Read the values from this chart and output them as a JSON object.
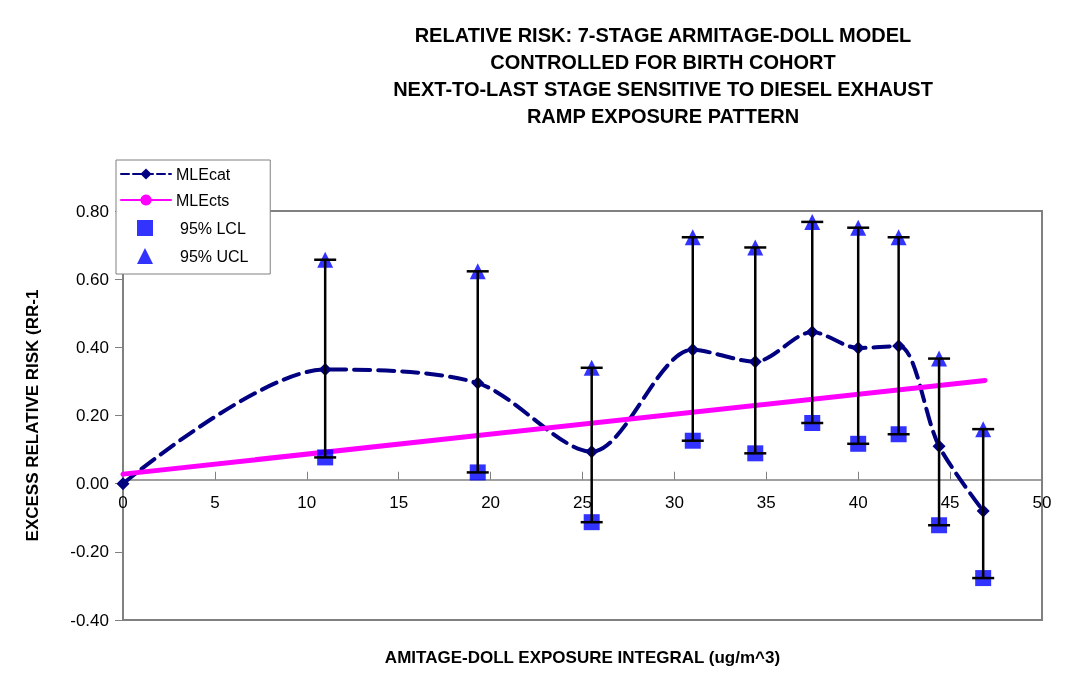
{
  "chart_data": {
    "type": "line",
    "title": "RELATIVE RISK: 7-STAGE ARMITAGE-DOLL MODEL\nCONTROLLED FOR BIRTH COHORT\nNEXT-TO-LAST STAGE SENSITIVE TO DIESEL EXHAUST\nRAMP EXPOSURE PATTERN",
    "xlabel": "AMITAGE-DOLL EXPOSURE INTEGRAL (ug/m^3)",
    "ylabel": "EXCESS RELATIVE RISK (RR-1",
    "series": [
      {
        "name": "MLEcat",
        "color": "#000080",
        "marker": "diamond",
        "line_style": "dashed",
        "x": [
          0,
          11.0,
          19.3,
          25.5,
          31.0,
          34.4,
          37.5,
          40.0,
          42.2,
          44.4,
          46.8
        ],
        "values": [
          0,
          0.335,
          0.295,
          0.094,
          0.393,
          0.358,
          0.445,
          0.398,
          0.404,
          0.11,
          -0.08
        ],
        "errors": [
          null,
          [
            0.077,
            0.657
          ],
          [
            0.033,
            0.623
          ],
          [
            -0.113,
            0.34
          ],
          [
            0.126,
            0.723
          ],
          [
            0.089,
            0.693
          ],
          [
            0.178,
            0.768
          ],
          [
            0.117,
            0.751
          ],
          [
            0.145,
            0.723
          ],
          [
            -0.122,
            0.367
          ],
          [
            -0.277,
            0.16
          ]
        ]
      },
      {
        "name": "MLEcts",
        "color": "#ff00ff",
        "marker": "none",
        "line_style": "solid",
        "x": [
          0,
          46.9
        ],
        "values": [
          0.028,
          0.303
        ]
      },
      {
        "name": "95% LCL",
        "type": "scatter",
        "color": "#0000ff",
        "marker": "square",
        "x": [
          11.0,
          19.3,
          25.5,
          31.0,
          34.4,
          37.5,
          40.0,
          42.2,
          44.4,
          46.8
        ],
        "values": [
          0.077,
          0.033,
          -0.113,
          0.126,
          0.089,
          0.178,
          0.117,
          0.145,
          -0.122,
          -0.277
        ]
      },
      {
        "name": "95% UCL",
        "type": "scatter",
        "color": "#0000ff",
        "marker": "triangle",
        "x": [
          11.0,
          19.3,
          25.5,
          31.0,
          34.4,
          37.5,
          40.0,
          42.2,
          44.4,
          46.8
        ],
        "values": [
          0.657,
          0.623,
          0.34,
          0.723,
          0.693,
          0.768,
          0.751,
          0.723,
          0.367,
          0.16
        ]
      }
    ],
    "xlim": [
      0,
      50
    ],
    "xticks": [
      0,
      5,
      10,
      15,
      20,
      25,
      30,
      35,
      40,
      45,
      50
    ],
    "ylim": [
      -0.4,
      0.8
    ],
    "yticks": [
      {
        "value": -0.4,
        "label": "-0.40"
      },
      {
        "value": -0.2,
        "label": "-0.20"
      },
      {
        "value": 0,
        "label": "0.00"
      },
      {
        "value": 0.2,
        "label": "0.20"
      },
      {
        "value": 0.4,
        "label": "0.40"
      },
      {
        "value": 0.6,
        "label": "0.60"
      },
      {
        "value": 0.8,
        "label": "0.80"
      }
    ],
    "grid": false,
    "legend": "top left"
  }
}
